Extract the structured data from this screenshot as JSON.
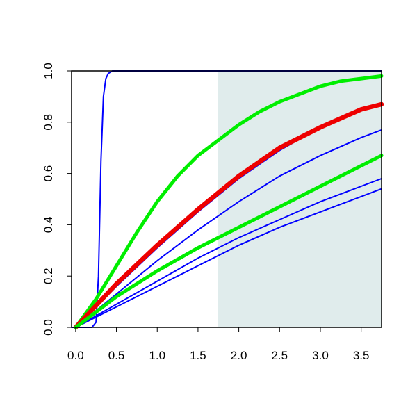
{
  "chart_data": {
    "type": "line",
    "title": "",
    "xlabel": "",
    "ylabel": "",
    "xlim": [
      -0.05,
      3.75
    ],
    "ylim": [
      0.0,
      1.0
    ],
    "x_ticks": [
      0.0,
      0.5,
      1.0,
      1.5,
      2.0,
      2.5,
      3.0,
      3.5
    ],
    "x_tick_labels": [
      "0.0",
      "0.5",
      "1.0",
      "1.5",
      "2.0",
      "2.5",
      "3.0",
      "3.5"
    ],
    "y_ticks": [
      0.0,
      0.2,
      0.4,
      0.6,
      0.8,
      1.0
    ],
    "y_tick_labels": [
      "0.0",
      "0.2",
      "0.4",
      "0.6",
      "0.8",
      "1.0"
    ],
    "grid": false,
    "legend": "none",
    "shaded_region": {
      "x_from": 1.74,
      "x_to": 3.75,
      "color": "#e0ecec"
    },
    "series": [
      {
        "color": "#0000ff",
        "style": "thin",
        "x": [
          -0.05,
          0.0,
          0.2,
          0.25,
          0.28,
          0.31,
          0.34,
          0.37,
          0.4,
          0.45,
          0.5,
          3.75
        ],
        "y": [
          0.0,
          0.0,
          0.0,
          0.02,
          0.2,
          0.65,
          0.9,
          0.97,
          0.99,
          1.0,
          1.0,
          1.0
        ]
      },
      {
        "color": "#0000ff",
        "style": "thin",
        "x": [
          0.0,
          0.5,
          1.0,
          1.5,
          2.0,
          2.5,
          3.0,
          3.5,
          3.75
        ],
        "y": [
          0.0,
          0.16,
          0.31,
          0.45,
          0.58,
          0.69,
          0.78,
          0.85,
          0.87
        ]
      },
      {
        "color": "#0000ff",
        "style": "thin",
        "x": [
          0.0,
          0.5,
          1.0,
          1.5,
          2.0,
          2.5,
          3.0,
          3.5,
          3.75
        ],
        "y": [
          0.0,
          0.13,
          0.26,
          0.38,
          0.49,
          0.59,
          0.67,
          0.74,
          0.77
        ]
      },
      {
        "color": "#0000ff",
        "style": "thin",
        "x": [
          0.0,
          0.5,
          1.0,
          1.5,
          2.0,
          2.5,
          3.0,
          3.5,
          3.75
        ],
        "y": [
          0.0,
          0.09,
          0.18,
          0.27,
          0.35,
          0.42,
          0.49,
          0.55,
          0.58
        ]
      },
      {
        "color": "#0000ff",
        "style": "thin",
        "x": [
          0.0,
          0.5,
          1.0,
          1.5,
          2.0,
          2.5,
          3.0,
          3.5,
          3.75
        ],
        "y": [
          0.0,
          0.08,
          0.16,
          0.24,
          0.32,
          0.39,
          0.45,
          0.51,
          0.54
        ]
      },
      {
        "color": "#00ee00",
        "style": "thick",
        "x": [
          0.0,
          0.25,
          0.5,
          0.75,
          1.0,
          1.25,
          1.5,
          1.75,
          2.0,
          2.25,
          2.5,
          2.75,
          3.0,
          3.25,
          3.5,
          3.75
        ],
        "y": [
          0.0,
          0.11,
          0.24,
          0.37,
          0.49,
          0.59,
          0.67,
          0.73,
          0.79,
          0.84,
          0.88,
          0.91,
          0.94,
          0.96,
          0.97,
          0.98
        ]
      },
      {
        "color": "#ee0000",
        "style": "thicker",
        "x": [
          0.0,
          0.5,
          1.0,
          1.5,
          2.0,
          2.5,
          3.0,
          3.5,
          3.75
        ],
        "y": [
          0.0,
          0.17,
          0.32,
          0.46,
          0.59,
          0.7,
          0.78,
          0.85,
          0.87
        ]
      },
      {
        "color": "#00ee00",
        "style": "thick",
        "x": [
          0.0,
          0.5,
          1.0,
          1.5,
          2.0,
          2.5,
          3.0,
          3.5,
          3.75
        ],
        "y": [
          0.0,
          0.12,
          0.22,
          0.31,
          0.39,
          0.47,
          0.55,
          0.63,
          0.67
        ]
      }
    ]
  }
}
